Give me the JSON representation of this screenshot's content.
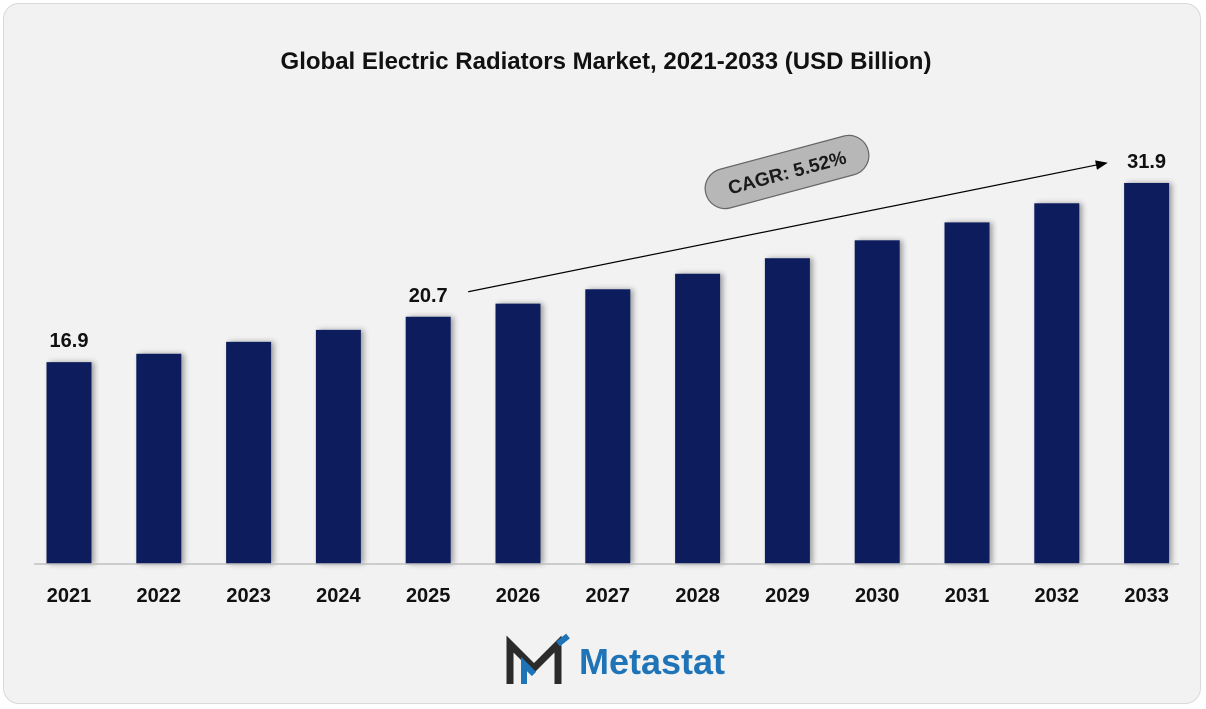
{
  "colors": {
    "bar": "#0b1e5b",
    "background": "#f2f2f2",
    "logo_blue": "#1f73b7",
    "logo_dark": "#2b2b2b",
    "cagr_fill": "#b7b7b7"
  },
  "brand": {
    "name": "Metastat",
    "icon": "metastat-m-logo-icon"
  },
  "chart_data": {
    "type": "bar",
    "title": "Global Electric Radiators Market, 2021-2033 (USD Billion)",
    "xlabel": "",
    "ylabel": "",
    "categories": [
      "2021",
      "2022",
      "2023",
      "2024",
      "2025",
      "2026",
      "2027",
      "2028",
      "2029",
      "2030",
      "2031",
      "2032",
      "2033"
    ],
    "values": [
      16.9,
      17.6,
      18.6,
      19.6,
      20.7,
      21.8,
      23.0,
      24.3,
      25.6,
      27.1,
      28.6,
      30.2,
      31.9
    ],
    "ylim": [
      0,
      36
    ],
    "grid": false,
    "legend": "none",
    "data_labels": [
      {
        "category": "2021",
        "text": "16.9"
      },
      {
        "category": "2025",
        "text": "20.7"
      },
      {
        "category": "2033",
        "text": "31.9"
      }
    ],
    "annotations": [
      {
        "type": "cagr-arrow",
        "text": "CAGR: 5.52%",
        "from": "2025",
        "to": "2033"
      }
    ]
  }
}
